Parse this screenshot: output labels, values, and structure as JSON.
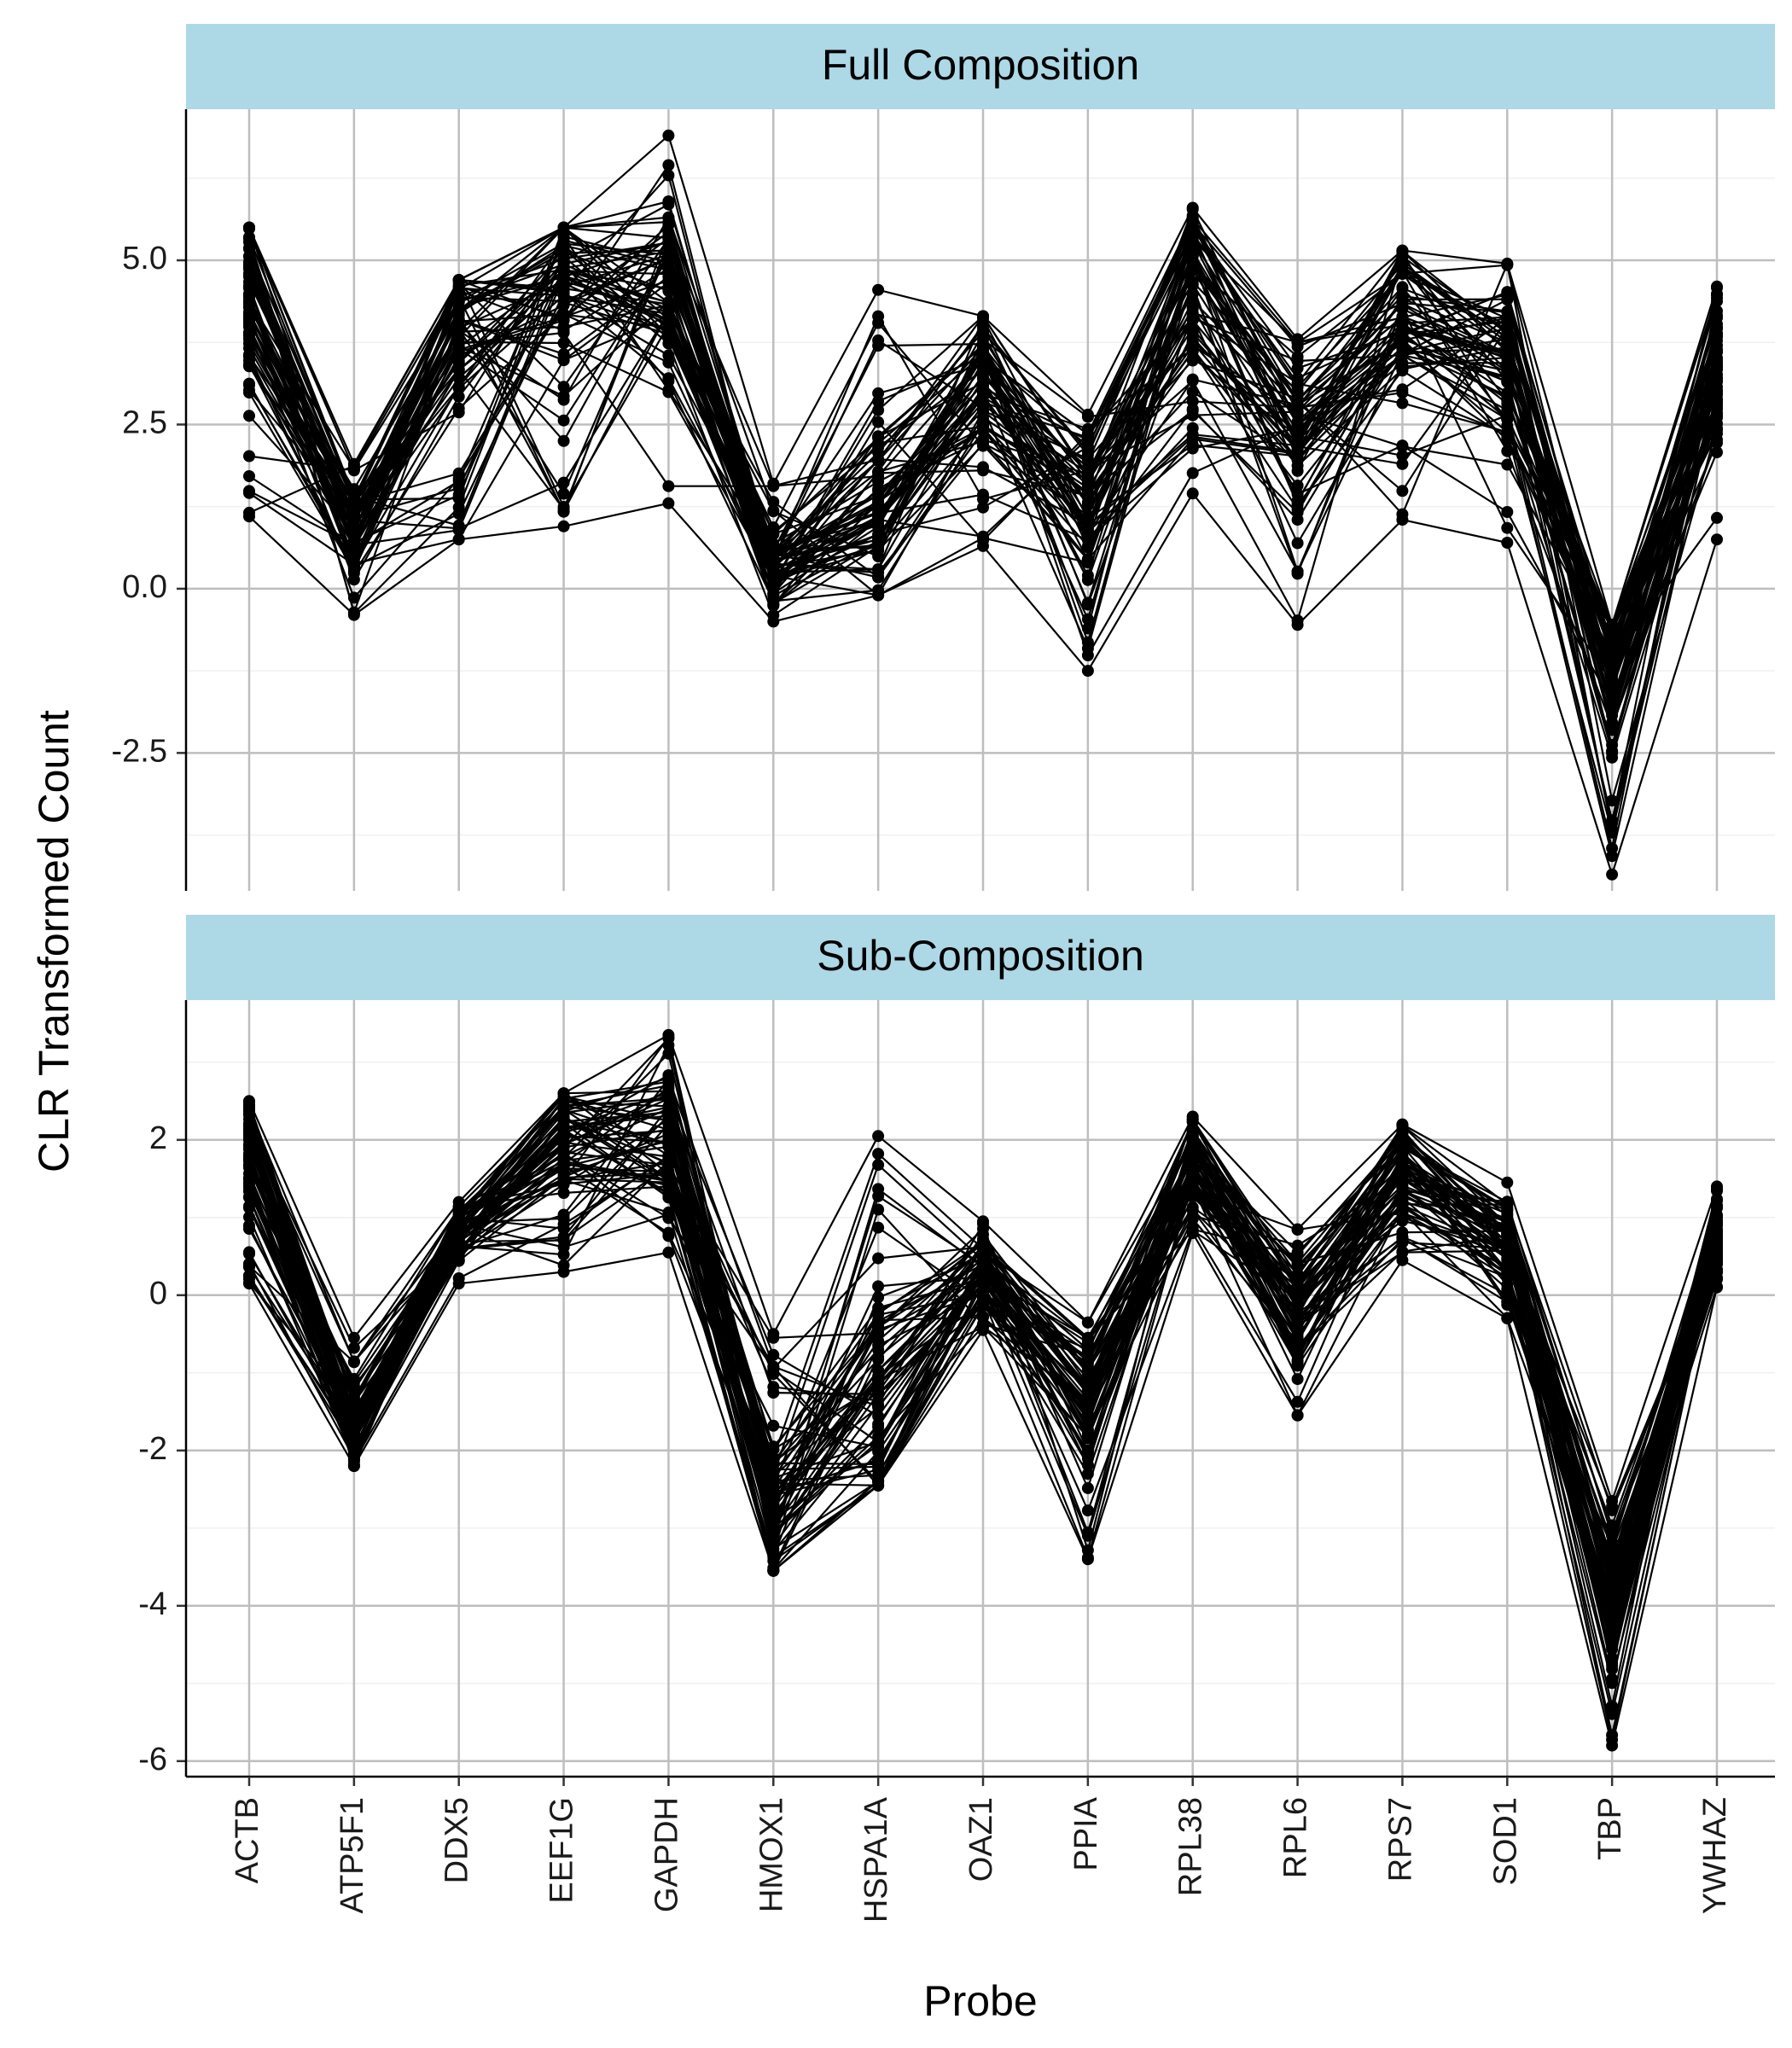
{
  "chart_data": [
    {
      "type": "line",
      "panel": "Full Composition",
      "title": "Full Composition",
      "categories": [
        "ACTB",
        "ATP5F1",
        "DDX5",
        "EEF1G",
        "GAPDH",
        "HMOX1",
        "HSPA1A",
        "OAZ1",
        "PPIA",
        "RPL38",
        "RPL6",
        "RPS7",
        "SOD1",
        "TBP",
        "YWHAZ"
      ],
      "y_ticks": [
        "-2.5",
        "0.0",
        "2.5",
        "5.0"
      ],
      "ylim": [
        -4.6,
        7.3
      ],
      "n_series": 70,
      "category_value_ranges": {
        "ACTB": [
          1.1,
          5.5
        ],
        "ATP5F1": [
          -0.4,
          1.9
        ],
        "DDX5": [
          0.75,
          4.7
        ],
        "EEF1G": [
          0.95,
          5.5
        ],
        "GAPDH": [
          1.3,
          6.9
        ],
        "HMOX1": [
          -0.5,
          1.6
        ],
        "HSPA1A": [
          -0.1,
          4.55
        ],
        "OAZ1": [
          0.65,
          4.15
        ],
        "PPIA": [
          -1.25,
          2.65
        ],
        "RPL38": [
          1.45,
          5.8
        ],
        "RPL6": [
          -0.55,
          3.8
        ],
        "RPS7": [
          1.05,
          5.15
        ],
        "SOD1": [
          0.7,
          4.95
        ],
        "TBP": [
          -4.35,
          -0.55
        ],
        "YWHAZ": [
          0.75,
          4.6
        ]
      },
      "category_typical": {
        "ACTB": 4.3,
        "ATP5F1": 0.9,
        "DDX5": 3.9,
        "EEF1G": 4.8,
        "GAPDH": 4.5,
        "HMOX1": 0.3,
        "HSPA1A": 1.2,
        "OAZ1": 3.2,
        "PPIA": 1.4,
        "RPL38": 4.5,
        "RPL6": 2.5,
        "RPS7": 4.2,
        "SOD1": 3.2,
        "TBP": -1.3,
        "YWHAZ": 3.3
      }
    },
    {
      "type": "line",
      "panel": "Sub-Composition",
      "title": "Sub-Composition",
      "categories": [
        "ACTB",
        "ATP5F1",
        "DDX5",
        "EEF1G",
        "GAPDH",
        "HMOX1",
        "HSPA1A",
        "OAZ1",
        "PPIA",
        "RPL38",
        "RPL6",
        "RPS7",
        "SOD1",
        "TBP",
        "YWHAZ"
      ],
      "y_ticks": [
        "-6",
        "-4",
        "-2",
        "0",
        "2"
      ],
      "ylim": [
        -6.2,
        3.8
      ],
      "n_series": 70,
      "category_value_ranges": {
        "ACTB": [
          0.15,
          2.5
        ],
        "ATP5F1": [
          -2.2,
          -0.55
        ],
        "DDX5": [
          0.15,
          1.2
        ],
        "EEF1G": [
          0.3,
          2.6
        ],
        "GAPDH": [
          0.55,
          3.35
        ],
        "HMOX1": [
          -3.55,
          -0.5
        ],
        "HSPA1A": [
          -2.45,
          2.05
        ],
        "OAZ1": [
          -0.45,
          0.95
        ],
        "PPIA": [
          -3.4,
          -0.35
        ],
        "RPL38": [
          0.8,
          2.3
        ],
        "RPL6": [
          -1.55,
          0.85
        ],
        "RPS7": [
          0.45,
          2.2
        ],
        "SOD1": [
          -0.3,
          1.45
        ],
        "TBP": [
          -5.8,
          -2.65
        ],
        "YWHAZ": [
          0.1,
          1.4
        ]
      },
      "category_typical": {
        "ACTB": 1.8,
        "ATP5F1": -1.7,
        "DDX5": 0.8,
        "EEF1G": 2.0,
        "GAPDH": 1.9,
        "HMOX1": -2.8,
        "HSPA1A": -1.4,
        "OAZ1": 0.3,
        "PPIA": -1.4,
        "RPL38": 1.8,
        "RPL6": -0.2,
        "RPS7": 1.6,
        "SOD1": 0.7,
        "TBP": -4.0,
        "YWHAZ": 0.6
      }
    }
  ],
  "xlabel": "Probe",
  "ylabel": "CLR Transformed Count"
}
